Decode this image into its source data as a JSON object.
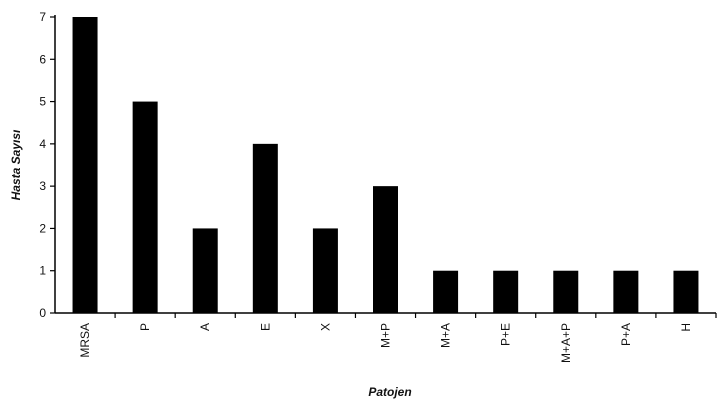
{
  "chart_data": {
    "type": "bar",
    "xlabel": "Patojen",
    "ylabel": "Hasta Sayısı",
    "categories": [
      "MRSA",
      "P",
      "A",
      "E",
      "X",
      "M+P",
      "M+A",
      "P+E",
      "M+A+P",
      "P+A",
      "H"
    ],
    "values": [
      7,
      5,
      2,
      4,
      2,
      3,
      1,
      1,
      1,
      1,
      1
    ],
    "ylim": [
      0,
      7
    ],
    "yticks": [
      0,
      1,
      2,
      3,
      4,
      5,
      6,
      7
    ],
    "grid": false,
    "legend": "none",
    "bar_color": "#000000"
  }
}
